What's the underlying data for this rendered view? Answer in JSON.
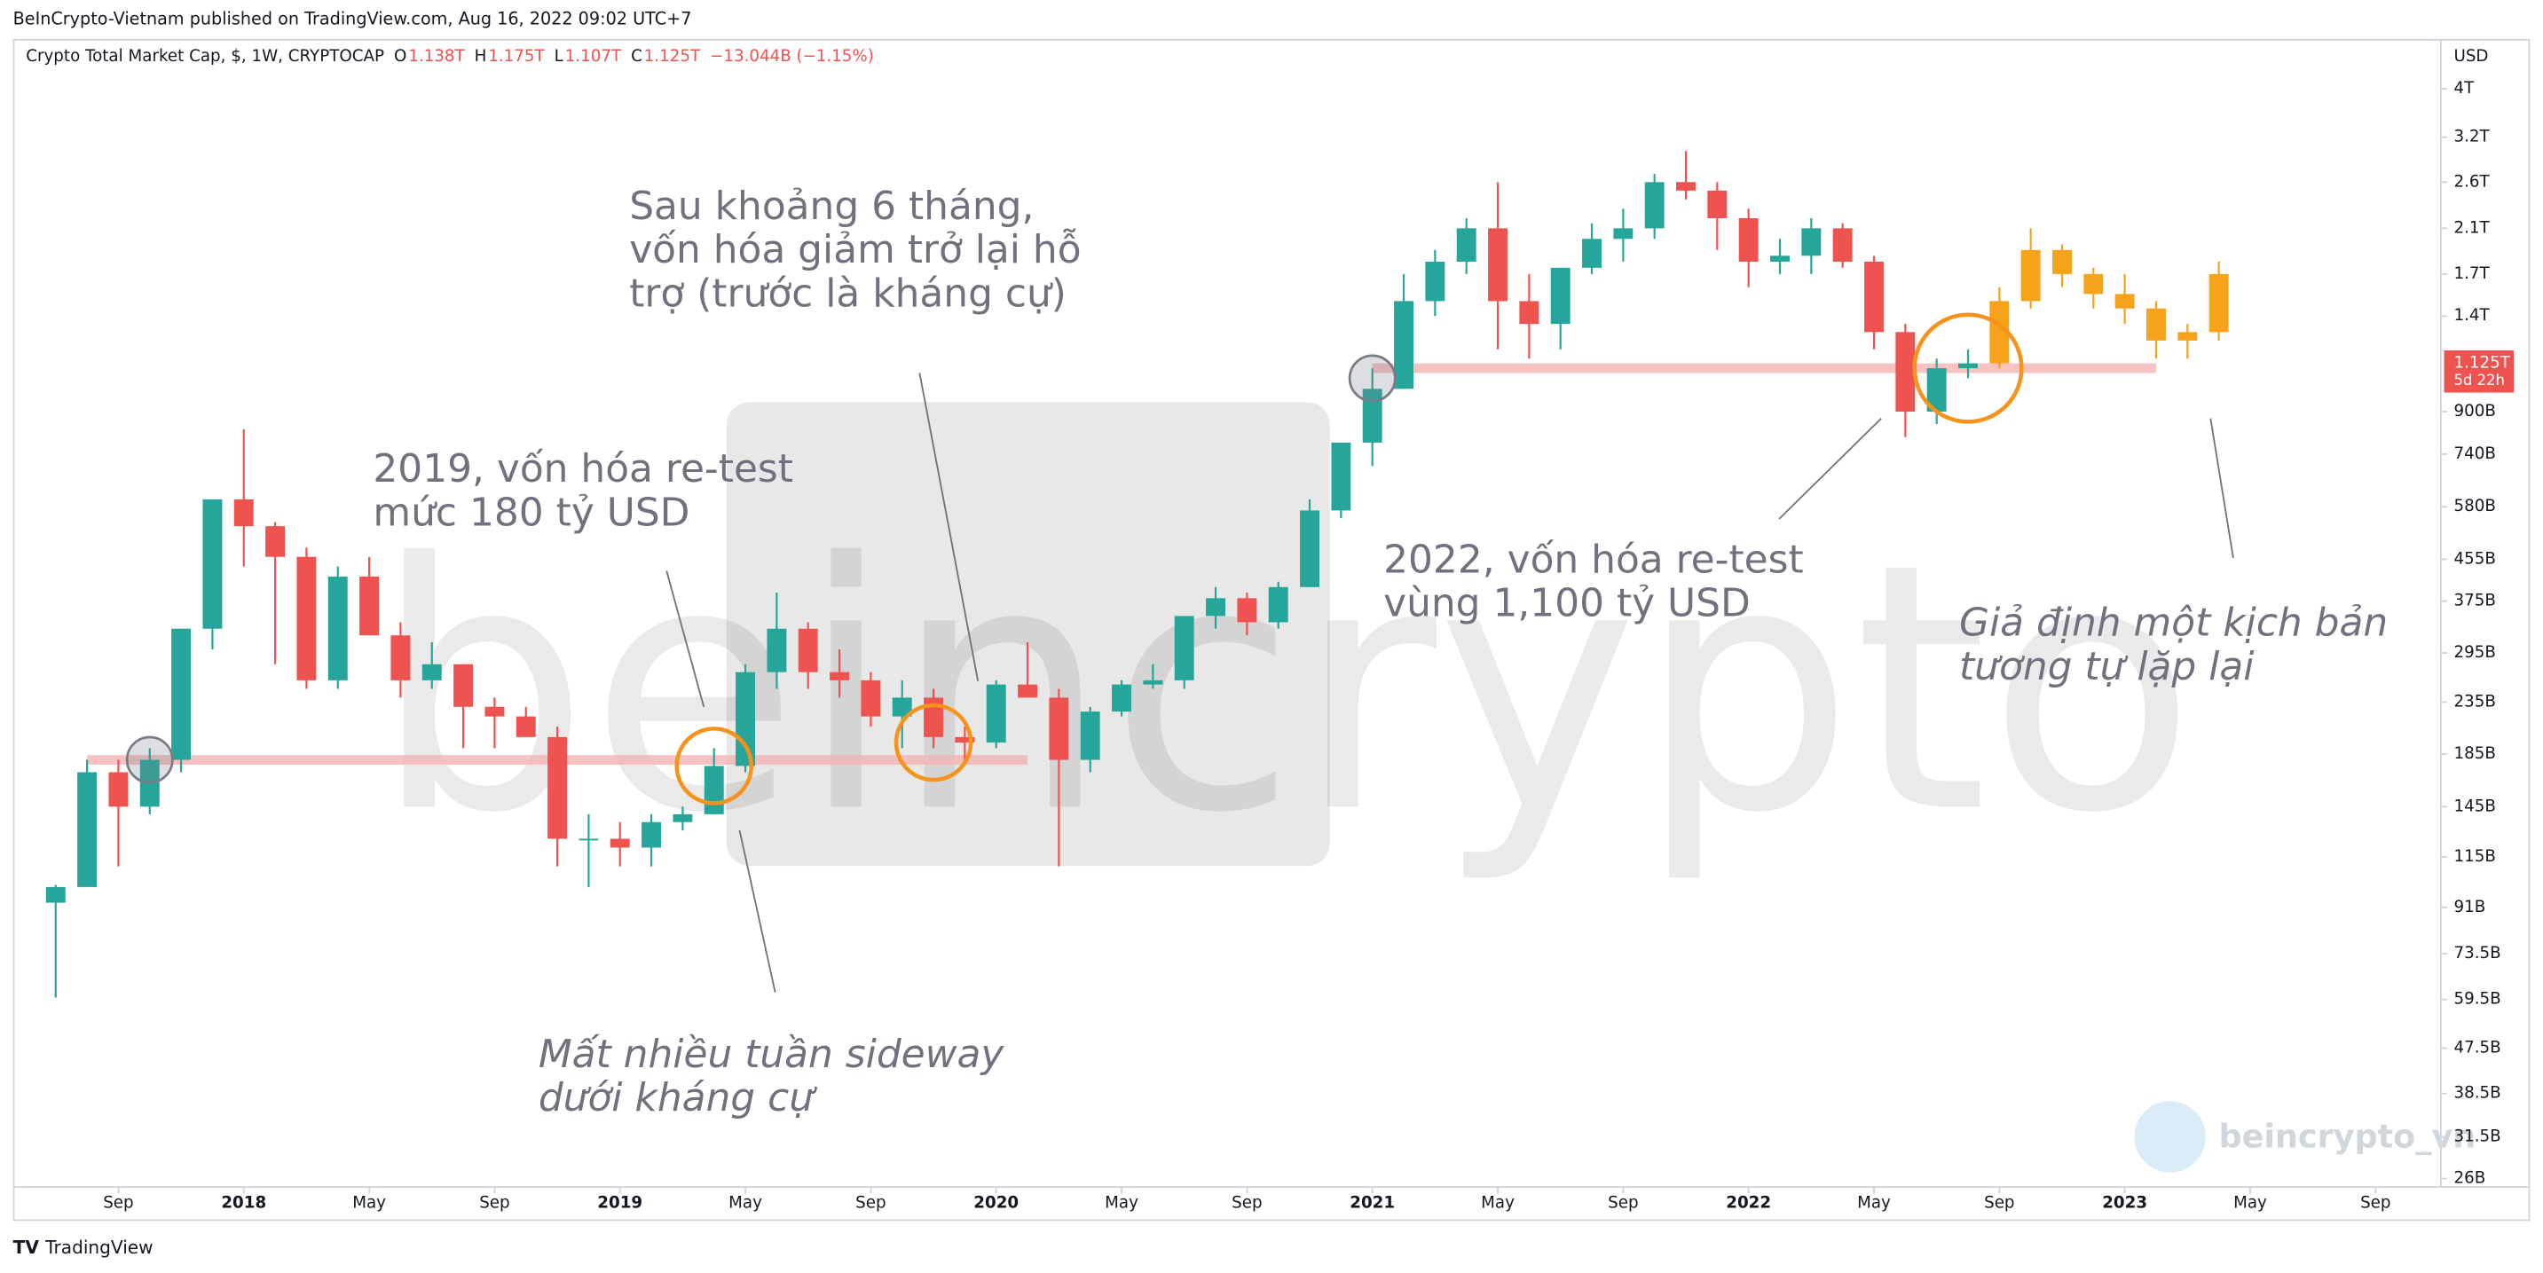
{
  "header": {
    "published": "BeInCrypto-Vietnam published on TradingView.com, Aug 16, 2022 09:02 UTC+7",
    "symbol": "Crypto Total Market Cap, $, 1W, CRYPTOCAP",
    "legend_values": [
      {
        "key": "O",
        "value": 1138000000000.0,
        "label": "1.138T"
      },
      {
        "key": "H",
        "value": 1175000000000.0,
        "label": "1.175T"
      },
      {
        "key": "L",
        "value": 1107000000000.0,
        "label": "1.107T"
      },
      {
        "key": "C",
        "value": 1125000000000.0,
        "label": "1.125T"
      }
    ],
    "change": {
      "value": -13044000000.0,
      "label": "−13.044B"
    },
    "change_pct": {
      "value": -1.15,
      "label": "(−1.15%)"
    }
  },
  "chart_data": {
    "type": "candlestick",
    "log_scale": true,
    "y_axis_label": "USD",
    "up_color": "#26a69a",
    "down_color": "#ef5350",
    "ylim": [
      25000000000.0,
      5000000000000.0
    ],
    "yticks": [
      {
        "value": 4000000000000.0,
        "label": "4T"
      },
      {
        "value": 3200000000000.0,
        "label": "3.2T"
      },
      {
        "value": 2600000000000.0,
        "label": "2.6T"
      },
      {
        "value": 2100000000000.0,
        "label": "2.1T"
      },
      {
        "value": 1700000000000.0,
        "label": "1.7T"
      },
      {
        "value": 1400000000000.0,
        "label": "1.4T"
      },
      {
        "value": 900000000000.0,
        "label": "900B"
      },
      {
        "value": 740000000000.0,
        "label": "740B"
      },
      {
        "value": 580000000000.0,
        "label": "580B"
      },
      {
        "value": 455000000000.0,
        "label": "455B"
      },
      {
        "value": 375000000000.0,
        "label": "375B"
      },
      {
        "value": 295000000000.0,
        "label": "295B"
      },
      {
        "value": 235000000000.0,
        "label": "235B"
      },
      {
        "value": 185000000000.0,
        "label": "185B"
      },
      {
        "value": 145000000000.0,
        "label": "145B"
      },
      {
        "value": 115000000000.0,
        "label": "115B"
      },
      {
        "value": 91000000000.0,
        "label": "91B"
      },
      {
        "value": 73500000000.0,
        "label": "73.5B"
      },
      {
        "value": 59500000000.0,
        "label": "59.5B"
      },
      {
        "value": 47500000000.0,
        "label": "47.5B"
      },
      {
        "value": 38500000000.0,
        "label": "38.5B"
      },
      {
        "value": 31500000000.0,
        "label": "31.5B"
      },
      {
        "value": 26000000000.0,
        "label": "26B"
      }
    ],
    "last_price": {
      "value": 1125000000000.0,
      "label": "1.125T",
      "countdown": "5d 22h"
    },
    "xticks": [
      {
        "value": "2017-09",
        "label": "Sep"
      },
      {
        "value": "2018-01",
        "label": "2018"
      },
      {
        "value": "2018-05",
        "label": "May"
      },
      {
        "value": "2018-09",
        "label": "Sep"
      },
      {
        "value": "2019-01",
        "label": "2019"
      },
      {
        "value": "2019-05",
        "label": "May"
      },
      {
        "value": "2019-09",
        "label": "Sep"
      },
      {
        "value": "2020-01",
        "label": "2020"
      },
      {
        "value": "2020-05",
        "label": "May"
      },
      {
        "value": "2020-09",
        "label": "Sep"
      },
      {
        "value": "2021-01",
        "label": "2021"
      },
      {
        "value": "2021-05",
        "label": "May"
      },
      {
        "value": "2021-09",
        "label": "Sep"
      },
      {
        "value": "2022-01",
        "label": "2022"
      },
      {
        "value": "2022-05",
        "label": "May"
      },
      {
        "value": "2022-09",
        "label": "Sep"
      },
      {
        "value": "2023-01",
        "label": "2023"
      },
      {
        "value": "2023-05",
        "label": "May"
      },
      {
        "value": "2023-09",
        "label": "Sep"
      }
    ],
    "x": [
      "2017-07",
      "2017-08",
      "2017-09",
      "2017-10",
      "2017-11",
      "2017-12",
      "2018-01",
      "2018-02",
      "2018-03",
      "2018-04",
      "2018-05",
      "2018-06",
      "2018-07",
      "2018-08",
      "2018-09",
      "2018-10",
      "2018-11",
      "2018-12",
      "2019-01",
      "2019-02",
      "2019-03",
      "2019-04",
      "2019-05",
      "2019-06",
      "2019-07",
      "2019-08",
      "2019-09",
      "2019-10",
      "2019-11",
      "2019-12",
      "2020-01",
      "2020-02",
      "2020-03",
      "2020-04",
      "2020-05",
      "2020-06",
      "2020-07",
      "2020-08",
      "2020-09",
      "2020-10",
      "2020-11",
      "2020-12",
      "2021-01",
      "2021-02",
      "2021-03",
      "2021-04",
      "2021-05",
      "2021-06",
      "2021-07",
      "2021-08",
      "2021-09",
      "2021-10",
      "2021-11",
      "2021-12",
      "2022-01",
      "2022-02",
      "2022-03",
      "2022-04",
      "2022-05",
      "2022-06",
      "2022-07",
      "2022-08"
    ],
    "candles": [
      [
        93000000000.0,
        101000000000.0,
        60000000000.0,
        100000000000.0
      ],
      [
        100000000000.0,
        180000000000.0,
        100000000000.0,
        170000000000.0
      ],
      [
        170000000000.0,
        180000000000.0,
        110000000000.0,
        145000000000.0
      ],
      [
        145000000000.0,
        190000000000.0,
        140000000000.0,
        180000000000.0
      ],
      [
        180000000000.0,
        330000000000.0,
        170000000000.0,
        330000000000.0
      ],
      [
        330000000000.0,
        600000000000.0,
        300000000000.0,
        600000000000.0
      ],
      [
        600000000000.0,
        830000000000.0,
        440000000000.0,
        530000000000.0
      ],
      [
        530000000000.0,
        540000000000.0,
        280000000000.0,
        460000000000.0
      ],
      [
        460000000000.0,
        480000000000.0,
        250000000000.0,
        260000000000.0
      ],
      [
        260000000000.0,
        440000000000.0,
        250000000000.0,
        420000000000.0
      ],
      [
        420000000000.0,
        460000000000.0,
        320000000000.0,
        320000000000.0
      ],
      [
        320000000000.0,
        340000000000.0,
        240000000000.0,
        260000000000.0
      ],
      [
        260000000000.0,
        310000000000.0,
        250000000000.0,
        280000000000.0
      ],
      [
        280000000000.0,
        280000000000.0,
        190000000000.0,
        230000000000.0
      ],
      [
        230000000000.0,
        240000000000.0,
        190000000000.0,
        220000000000.0
      ],
      [
        220000000000.0,
        230000000000.0,
        200000000000.0,
        200000000000.0
      ],
      [
        200000000000.0,
        210000000000.0,
        110000000000.0,
        125000000000.0
      ],
      [
        125000000000.0,
        140000000000.0,
        100000000000.0,
        125000000000.0
      ],
      [
        125000000000.0,
        135000000000.0,
        110000000000.0,
        120000000000.0
      ],
      [
        120000000000.0,
        140000000000.0,
        110000000000.0,
        135000000000.0
      ],
      [
        135000000000.0,
        145000000000.0,
        130000000000.0,
        140000000000.0
      ],
      [
        140000000000.0,
        190000000000.0,
        140000000000.0,
        175000000000.0
      ],
      [
        175000000000.0,
        280000000000.0,
        170000000000.0,
        270000000000.0
      ],
      [
        270000000000.0,
        390000000000.0,
        250000000000.0,
        330000000000.0
      ],
      [
        330000000000.0,
        340000000000.0,
        250000000000.0,
        270000000000.0
      ],
      [
        270000000000.0,
        300000000000.0,
        240000000000.0,
        260000000000.0
      ],
      [
        260000000000.0,
        270000000000.0,
        210000000000.0,
        220000000000.0
      ],
      [
        220000000000.0,
        260000000000.0,
        190000000000.0,
        240000000000.0
      ],
      [
        240000000000.0,
        250000000000.0,
        190000000000.0,
        200000000000.0
      ],
      [
        200000000000.0,
        210000000000.0,
        180000000000.0,
        195000000000.0
      ],
      [
        195000000000.0,
        260000000000.0,
        190000000000.0,
        255000000000.0
      ],
      [
        255000000000.0,
        310000000000.0,
        240000000000.0,
        240000000000.0
      ],
      [
        240000000000.0,
        250000000000.0,
        110000000000.0,
        180000000000.0
      ],
      [
        180000000000.0,
        230000000000.0,
        170000000000.0,
        225000000000.0
      ],
      [
        225000000000.0,
        260000000000.0,
        220000000000.0,
        255000000000.0
      ],
      [
        255000000000.0,
        280000000000.0,
        250000000000.0,
        260000000000.0
      ],
      [
        260000000000.0,
        350000000000.0,
        250000000000.0,
        350000000000.0
      ],
      [
        350000000000.0,
        400000000000.0,
        330000000000.0,
        380000000000.0
      ],
      [
        380000000000.0,
        390000000000.0,
        320000000000.0,
        340000000000.0
      ],
      [
        340000000000.0,
        410000000000.0,
        330000000000.0,
        400000000000.0
      ],
      [
        400000000000.0,
        600000000000.0,
        400000000000.0,
        570000000000.0
      ],
      [
        570000000000.0,
        780000000000.0,
        550000000000.0,
        780000000000.0
      ],
      [
        780000000000.0,
        1100000000000.0,
        700000000000.0,
        1000000000000.0
      ],
      [
        1000000000000.0,
        1700000000000.0,
        1000000000000.0,
        1500000000000.0
      ],
      [
        1500000000000.0,
        1900000000000.0,
        1400000000000.0,
        1800000000000.0
      ],
      [
        1800000000000.0,
        2200000000000.0,
        1700000000000.0,
        2100000000000.0
      ],
      [
        2100000000000.0,
        2600000000000.0,
        1200000000000.0,
        1500000000000.0
      ],
      [
        1500000000000.0,
        1700000000000.0,
        1150000000000.0,
        1350000000000.0
      ],
      [
        1350000000000.0,
        1750000000000.0,
        1200000000000.0,
        1750000000000.0
      ],
      [
        1750000000000.0,
        2150000000000.0,
        1700000000000.0,
        2000000000000.0
      ],
      [
        2000000000000.0,
        2300000000000.0,
        1800000000000.0,
        2100000000000.0
      ],
      [
        2100000000000.0,
        2700000000000.0,
        2000000000000.0,
        2600000000000.0
      ],
      [
        2600000000000.0,
        3000000000000.0,
        2400000000000.0,
        2500000000000.0
      ],
      [
        2500000000000.0,
        2600000000000.0,
        1900000000000.0,
        2200000000000.0
      ],
      [
        2200000000000.0,
        2300000000000.0,
        1600000000000.0,
        1800000000000.0
      ],
      [
        1800000000000.0,
        2000000000000.0,
        1700000000000.0,
        1850000000000.0
      ],
      [
        1850000000000.0,
        2200000000000.0,
        1700000000000.0,
        2100000000000.0
      ],
      [
        2100000000000.0,
        2150000000000.0,
        1750000000000.0,
        1800000000000.0
      ],
      [
        1800000000000.0,
        1850000000000.0,
        1200000000000.0,
        1300000000000.0
      ],
      [
        1300000000000.0,
        1350000000000.0,
        800000000000.0,
        900000000000.0
      ],
      [
        900000000000.0,
        1150000000000.0,
        850000000000.0,
        1100000000000.0
      ],
      [
        1100000000000.0,
        1200000000000.0,
        1050000000000.0,
        1125000000000.0
      ]
    ],
    "projection": {
      "color": "#f7a21b",
      "x": [
        "2022-09",
        "2022-10",
        "2022-11",
        "2022-12",
        "2023-01",
        "2023-02",
        "2023-03",
        "2023-04"
      ],
      "candles": [
        [
          1125000000000.0,
          1600000000000.0,
          1100000000000.0,
          1500000000000.0
        ],
        [
          1500000000000.0,
          2100000000000.0,
          1450000000000.0,
          1900000000000.0
        ],
        [
          1900000000000.0,
          1950000000000.0,
          1600000000000.0,
          1700000000000.0
        ],
        [
          1700000000000.0,
          1750000000000.0,
          1450000000000.0,
          1550000000000.0
        ],
        [
          1550000000000.0,
          1700000000000.0,
          1350000000000.0,
          1450000000000.0
        ],
        [
          1450000000000.0,
          1500000000000.0,
          1150000000000.0,
          1250000000000.0
        ],
        [
          1250000000000.0,
          1350000000000.0,
          1150000000000.0,
          1300000000000.0
        ],
        [
          1300000000000.0,
          1800000000000.0,
          1250000000000.0,
          1700000000000.0
        ]
      ]
    },
    "levels": [
      {
        "value": 180000000000.0,
        "from": "2017-08",
        "to": "2020-02",
        "color": "#f4b4b4"
      },
      {
        "value": 1100000000000.0,
        "from": "2021-01",
        "to": "2023-02",
        "color": "#f4b4b4"
      }
    ],
    "markers": [
      {
        "x": "2017-10",
        "value": 180000000000.0,
        "color": "#787b86"
      },
      {
        "x": "2019-04",
        "value": 175000000000.0,
        "color": "#f7931a"
      },
      {
        "x": "2019-11",
        "value": 195000000000.0,
        "color": "#f7931a"
      },
      {
        "x": "2021-01",
        "value": 1050000000000.0,
        "color": "#787b86"
      },
      {
        "x": "2022-08",
        "value": 1100000000000.0,
        "color": "#f7931a"
      }
    ],
    "annotations": [
      {
        "lines": [
          "2019, vốn hóa re-test",
          "mức 180 tỷ USD"
        ]
      },
      {
        "lines": [
          "Sau khoảng 6 tháng,",
          "vốn hóa giảm trở lại hỗ",
          "trợ (trước là kháng cự)"
        ]
      },
      {
        "lines": [
          "2022, vốn hóa re-test",
          "vùng 1,100 tỷ USD"
        ]
      },
      {
        "lines": [
          "Mất nhiều tuần sideway",
          "dưới kháng cự"
        ]
      },
      {
        "lines": [
          "Giả định một kịch bản",
          "tương tự lặp lại"
        ]
      }
    ]
  },
  "watermark": {
    "brand": "beincrypto",
    "handle": "beincrypto_vn"
  },
  "footer": "TradingView"
}
